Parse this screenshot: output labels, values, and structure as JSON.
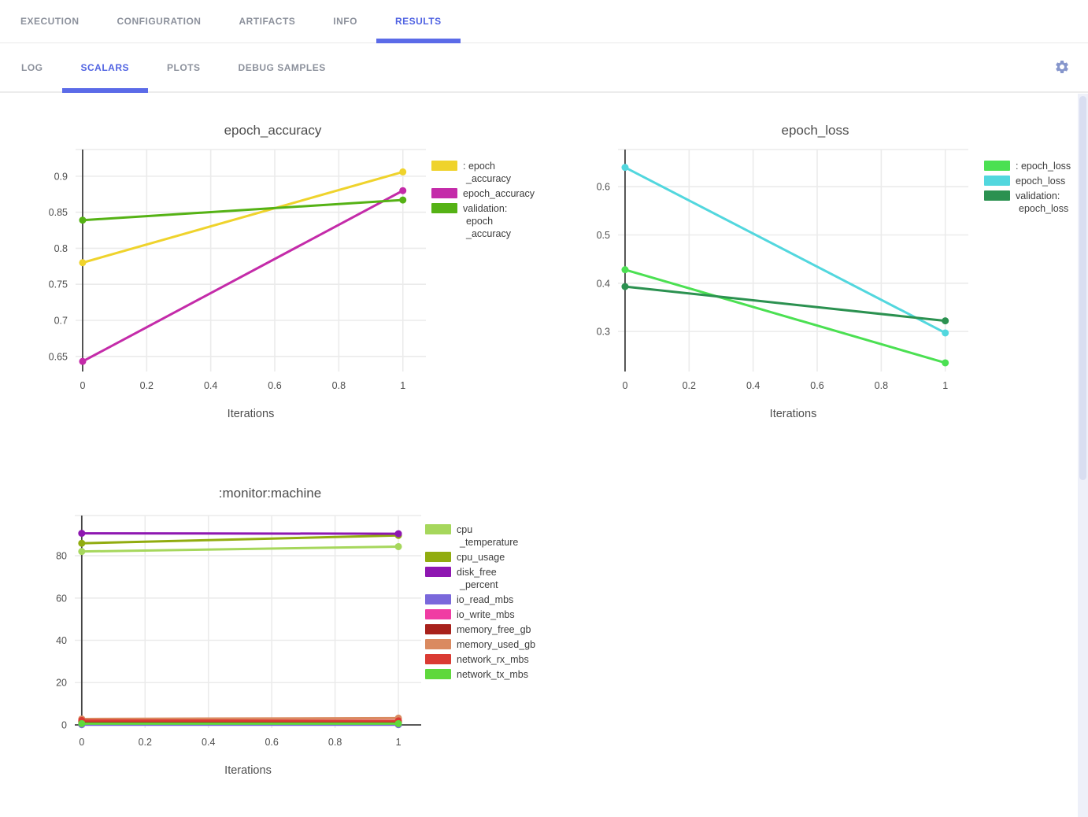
{
  "app": {
    "accent_color": "#5063e2",
    "underline_color": "#5b6be8",
    "inactive_tab_color": "#8c919c",
    "gear_icon_color": "#8696cc"
  },
  "main_tabs": {
    "items": [
      {
        "label": "EXECUTION",
        "active": false
      },
      {
        "label": "CONFIGURATION",
        "active": false
      },
      {
        "label": "ARTIFACTS",
        "active": false
      },
      {
        "label": "INFO",
        "active": false
      },
      {
        "label": "RESULTS",
        "active": true
      }
    ]
  },
  "results_tabs": {
    "items": [
      {
        "label": "LOG",
        "active": false
      },
      {
        "label": "SCALARS",
        "active": true
      },
      {
        "label": "PLOTS",
        "active": false
      },
      {
        "label": "DEBUG SAMPLES",
        "active": false
      }
    ],
    "settings_icon": "gear-icon"
  },
  "chart_data": [
    {
      "type": "line",
      "title": "epoch_accuracy",
      "xlabel": "Iterations",
      "ylabel": "",
      "x": [
        0,
        1
      ],
      "x_ticks": [
        0,
        0.2,
        0.4,
        0.6,
        0.8,
        1
      ],
      "y_ticks": [
        0.65,
        0.7,
        0.75,
        0.8,
        0.85,
        0.9
      ],
      "x_range": [
        -0.022,
        1.072
      ],
      "y_range": [
        0.629,
        0.937
      ],
      "grid": true,
      "legend_position": "right",
      "series": [
        {
          "name": ": epoch_accuracy",
          "legend_lines": [
            ": epoch",
            "_accuracy"
          ],
          "color": "#EFD32C",
          "values": [
            0.78,
            0.906
          ]
        },
        {
          "name": "epoch_accuracy",
          "legend_lines": [
            "epoch_accuracy"
          ],
          "color": "#C42BA9",
          "values": [
            0.643,
            0.88
          ]
        },
        {
          "name": "validation: epoch_accuracy",
          "legend_lines": [
            "validation:",
            "epoch",
            "_accuracy"
          ],
          "color": "#55B215",
          "values": [
            0.839,
            0.867
          ]
        }
      ]
    },
    {
      "type": "line",
      "title": "epoch_loss",
      "xlabel": "Iterations",
      "ylabel": "",
      "x": [
        0,
        1
      ],
      "x_ticks": [
        0,
        0.2,
        0.4,
        0.6,
        0.8,
        1
      ],
      "y_ticks": [
        0.3,
        0.4,
        0.5,
        0.6
      ],
      "x_range": [
        -0.022,
        1.072
      ],
      "y_range": [
        0.217,
        0.677
      ],
      "grid": true,
      "legend_position": "right",
      "series": [
        {
          "name": ": epoch_loss",
          "legend_lines": [
            ": epoch_loss"
          ],
          "color": "#4BE052",
          "values": [
            0.428,
            0.235
          ]
        },
        {
          "name": "epoch_loss",
          "legend_lines": [
            "epoch_loss"
          ],
          "color": "#52D7DE",
          "values": [
            0.64,
            0.297
          ]
        },
        {
          "name": "validation: epoch_loss",
          "legend_lines": [
            "validation:",
            "epoch_loss"
          ],
          "color": "#2B9150",
          "values": [
            0.393,
            0.322
          ]
        }
      ]
    },
    {
      "type": "line",
      "title": ":monitor:machine",
      "xlabel": "Iterations",
      "ylabel": "",
      "x": [
        0,
        1
      ],
      "x_ticks": [
        0,
        0.2,
        0.4,
        0.6,
        0.8,
        1
      ],
      "y_ticks": [
        0,
        20,
        40,
        60,
        80
      ],
      "x_range": [
        -0.022,
        1.072
      ],
      "y_range": [
        -1.5,
        99
      ],
      "grid": true,
      "legend_position": "right",
      "series": [
        {
          "name": "cpu_temperature",
          "legend_lines": [
            "cpu",
            "_temperature"
          ],
          "color": "#A6D75C",
          "values": [
            82.0,
            84.3
          ]
        },
        {
          "name": "cpu_usage",
          "legend_lines": [
            "cpu_usage"
          ],
          "color": "#91AC0F",
          "values": [
            85.9,
            89.6
          ]
        },
        {
          "name": "disk_free_percent",
          "legend_lines": [
            "disk_free",
            "_percent"
          ],
          "color": "#8E17B1",
          "values": [
            90.6,
            90.4
          ]
        },
        {
          "name": "io_read_mbs",
          "legend_lines": [
            "io_read_mbs"
          ],
          "color": "#7A68DB",
          "values": [
            0.1,
            0.1
          ]
        },
        {
          "name": "io_write_mbs",
          "legend_lines": [
            "io_write_mbs"
          ],
          "color": "#F03CA3",
          "values": [
            1.0,
            0.9
          ]
        },
        {
          "name": "memory_free_gb",
          "legend_lines": [
            "memory_free_gb"
          ],
          "color": "#A8211B",
          "values": [
            1.6,
            1.4
          ]
        },
        {
          "name": "memory_used_gb",
          "legend_lines": [
            "memory_used_gb"
          ],
          "color": "#DA8A60",
          "values": [
            2.8,
            3.2
          ]
        },
        {
          "name": "network_rx_mbs",
          "legend_lines": [
            "network_rx_mbs"
          ],
          "color": "#DA3B33",
          "values": [
            2.1,
            1.9
          ]
        },
        {
          "name": "network_tx_mbs",
          "legend_lines": [
            "network_tx_mbs"
          ],
          "color": "#5FD83C",
          "values": [
            0.6,
            0.6
          ]
        }
      ]
    }
  ]
}
